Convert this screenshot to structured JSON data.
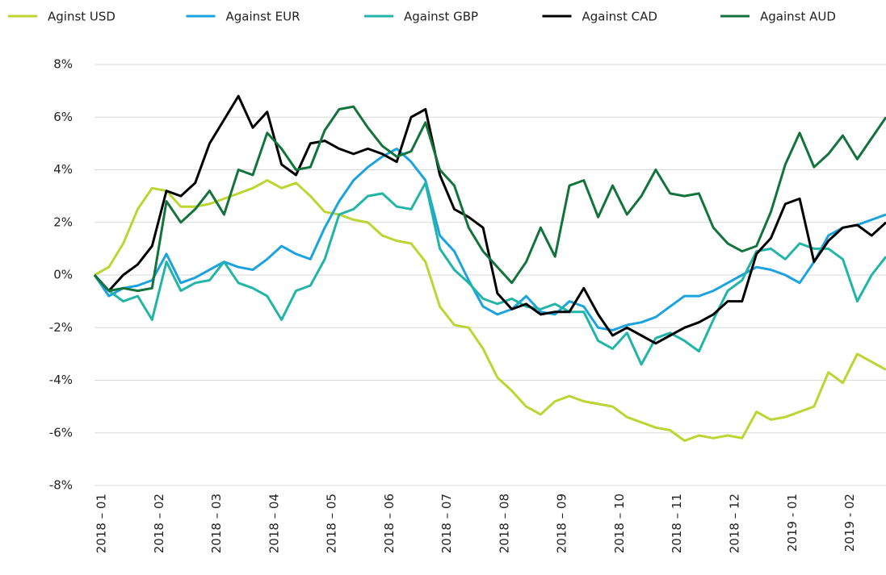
{
  "chart_data": {
    "type": "line",
    "x": [
      0,
      0.25,
      0.5,
      0.75,
      1,
      1.25,
      1.5,
      1.75,
      2,
      2.25,
      2.5,
      2.75,
      3,
      3.25,
      3.5,
      3.75,
      4,
      4.25,
      4.5,
      4.75,
      5,
      5.25,
      5.5,
      5.75,
      6,
      6.25,
      6.5,
      6.75,
      7,
      7.25,
      7.5,
      7.75,
      8,
      8.25,
      8.5,
      8.75,
      9,
      9.25,
      9.5,
      9.75,
      10,
      10.25,
      10.5,
      10.75,
      11,
      11.25,
      11.5,
      11.75,
      12,
      12.25,
      12.5,
      12.75,
      13,
      13.25,
      13.5,
      13.75
    ],
    "xlim": [
      0,
      13.75
    ],
    "xticks": [
      {
        "value": 0,
        "label": "2018 – 01"
      },
      {
        "value": 1,
        "label": "2018 – 02"
      },
      {
        "value": 2,
        "label": "2018 – 03"
      },
      {
        "value": 3,
        "label": "2018 – 04"
      },
      {
        "value": 4,
        "label": "2018 – 05"
      },
      {
        "value": 5,
        "label": "2018 – 06"
      },
      {
        "value": 6,
        "label": "2018 – 07"
      },
      {
        "value": 7,
        "label": "2018 – 08"
      },
      {
        "value": 8,
        "label": "2018 – 09"
      },
      {
        "value": 9,
        "label": "2018 – 10"
      },
      {
        "value": 10,
        "label": "2018 – 11"
      },
      {
        "value": 11,
        "label": "2018 – 12"
      },
      {
        "value": 12,
        "label": "2019 - 01"
      },
      {
        "value": 13,
        "label": "2019 - 02"
      }
    ],
    "ylim": [
      -8,
      8
    ],
    "yticks": [
      {
        "value": -8,
        "label": "-8%"
      },
      {
        "value": -6,
        "label": "-6%"
      },
      {
        "value": -4,
        "label": "-4%"
      },
      {
        "value": -2,
        "label": "-2%"
      },
      {
        "value": 0,
        "label": "0%"
      },
      {
        "value": 2,
        "label": "2%"
      },
      {
        "value": 4,
        "label": "4%"
      },
      {
        "value": 6,
        "label": "6%"
      },
      {
        "value": 8,
        "label": "8%"
      }
    ],
    "grid": true,
    "legend": "top",
    "series": [
      {
        "name": "Aginst USD",
        "color": "#bdd531",
        "values": [
          0,
          0.3,
          1.2,
          2.5,
          3.3,
          3.2,
          2.6,
          2.6,
          2.7,
          2.9,
          3.1,
          3.3,
          3.6,
          3.3,
          3.5,
          3.0,
          2.4,
          2.3,
          2.1,
          2.0,
          1.5,
          1.3,
          1.2,
          0.5,
          -1.2,
          -1.9,
          -2.0,
          -2.8,
          -3.9,
          -4.4,
          -5.0,
          -5.3,
          -4.8,
          -4.6,
          -4.8,
          -4.9,
          -5.0,
          -5.4,
          -5.6,
          -5.8,
          -5.9,
          -6.3,
          -6.1,
          -6.2,
          -6.1,
          -6.2,
          -5.2,
          -5.5,
          -5.4,
          -5.2,
          -5.0,
          -3.7,
          -4.1,
          -3.0,
          -3.3,
          -3.6
        ]
      },
      {
        "name": "Against EUR",
        "color": "#1ba3e0",
        "values": [
          0,
          -0.8,
          -0.5,
          -0.4,
          -0.2,
          0.8,
          -0.3,
          -0.1,
          0.2,
          0.5,
          0.3,
          0.2,
          0.6,
          1.1,
          0.8,
          0.6,
          1.8,
          2.8,
          3.6,
          4.1,
          4.5,
          4.8,
          4.3,
          3.6,
          1.5,
          0.9,
          -0.2,
          -1.2,
          -1.5,
          -1.3,
          -0.8,
          -1.4,
          -1.5,
          -1.0,
          -1.2,
          -2.0,
          -2.1,
          -1.9,
          -1.8,
          -1.6,
          -1.2,
          -0.8,
          -0.8,
          -0.6,
          -0.3,
          0.0,
          0.3,
          0.2,
          0.0,
          -0.3,
          0.5,
          1.5,
          1.8,
          1.9,
          2.1,
          2.3
        ]
      },
      {
        "name": "Against GBP",
        "color": "#21b5a8",
        "values": [
          0,
          -0.6,
          -1.0,
          -0.8,
          -1.7,
          0.5,
          -0.6,
          -0.3,
          -0.2,
          0.5,
          -0.3,
          -0.5,
          -0.8,
          -1.7,
          -0.6,
          -0.4,
          0.6,
          2.3,
          2.5,
          3.0,
          3.1,
          2.6,
          2.5,
          3.5,
          1.0,
          0.2,
          -0.3,
          -0.9,
          -1.1,
          -0.9,
          -1.2,
          -1.3,
          -1.1,
          -1.4,
          -1.4,
          -2.5,
          -2.8,
          -2.2,
          -3.4,
          -2.4,
          -2.2,
          -2.5,
          -2.9,
          -1.7,
          -0.6,
          -0.2,
          0.9,
          1.0,
          0.6,
          1.2,
          1.0,
          1.0,
          0.6,
          -1.0,
          0.0,
          0.7
        ]
      },
      {
        "name": "Against CAD",
        "color": "#000000",
        "values": [
          0,
          -0.6,
          0.0,
          0.4,
          1.1,
          3.2,
          3.0,
          3.5,
          5.0,
          5.9,
          6.8,
          5.6,
          6.2,
          4.2,
          3.8,
          5.0,
          5.1,
          4.8,
          4.6,
          4.8,
          4.6,
          4.3,
          6.0,
          6.3,
          3.8,
          2.5,
          2.2,
          1.8,
          -0.7,
          -1.3,
          -1.1,
          -1.5,
          -1.4,
          -1.4,
          -0.5,
          -1.5,
          -2.3,
          -2.0,
          -2.3,
          -2.6,
          -2.3,
          -2.0,
          -1.8,
          -1.5,
          -1.0,
          -1.0,
          0.8,
          1.4,
          2.7,
          2.9,
          0.5,
          1.3,
          1.8,
          1.9,
          1.5,
          2.0
        ]
      },
      {
        "name": "Against AUD",
        "color": "#12733b",
        "values": [
          0,
          -0.6,
          -0.5,
          -0.6,
          -0.5,
          2.8,
          2.0,
          2.5,
          3.2,
          2.3,
          4.0,
          3.8,
          5.4,
          4.8,
          4.0,
          4.1,
          5.5,
          6.3,
          6.4,
          5.6,
          4.9,
          4.5,
          4.7,
          5.8,
          4.0,
          3.4,
          1.8,
          0.9,
          0.3,
          -0.3,
          0.5,
          1.8,
          0.7,
          3.4,
          3.6,
          2.2,
          3.4,
          2.3,
          3.0,
          4.0,
          3.1,
          3.0,
          3.1,
          1.8,
          1.2,
          0.9,
          1.1,
          2.4,
          4.2,
          5.4,
          4.1,
          4.6,
          5.3,
          4.4,
          5.2,
          6.0
        ]
      }
    ]
  }
}
